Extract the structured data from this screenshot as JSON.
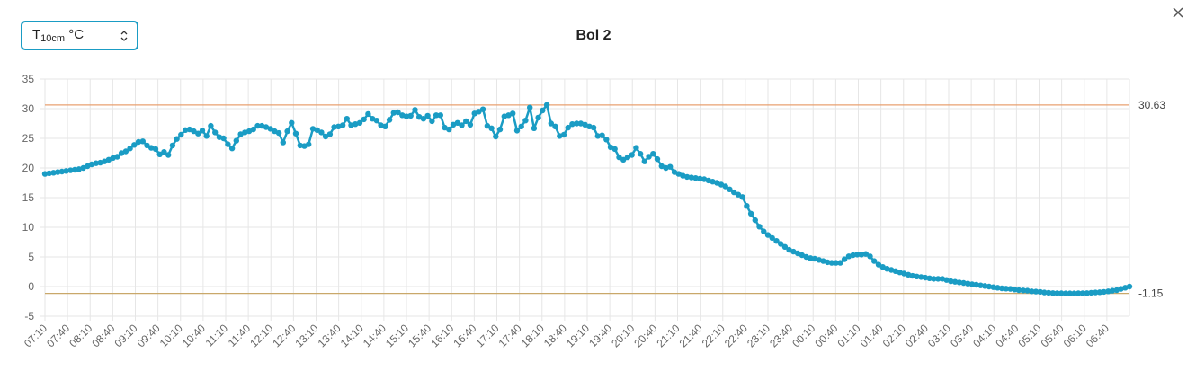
{
  "selector": {
    "label_main": "T",
    "label_sub": "10cm",
    "label_unit": " °C",
    "icon": "chevron-updown-icon"
  },
  "close": {
    "icon": "close-icon"
  },
  "colors": {
    "series": "#1a9cc4",
    "upper_line": "#e8a070",
    "lower_line": "#c9a86a",
    "grid": "#e6e6e6"
  },
  "chart_data": {
    "type": "line",
    "title": "Bol 2",
    "xlabel": "",
    "ylabel": "",
    "ylim": [
      -5,
      35
    ],
    "yticks": [
      "-5",
      "0",
      "5",
      "10",
      "15",
      "20",
      "25",
      "30",
      "35"
    ],
    "grid": true,
    "xticks": [
      "07:10",
      "07:40",
      "08:10",
      "08:40",
      "09:10",
      "09:40",
      "10:10",
      "10:40",
      "11:10",
      "11:40",
      "12:10",
      "12:40",
      "13:10",
      "13:40",
      "14:10",
      "14:40",
      "15:10",
      "15:40",
      "16:10",
      "16:40",
      "17:10",
      "17:40",
      "18:10",
      "18:40",
      "19:10",
      "19:40",
      "20:10",
      "20:40",
      "21:10",
      "21:40",
      "22:10",
      "22:40",
      "23:10",
      "23:40",
      "00:10",
      "00:40",
      "01:10",
      "01:40",
      "02:10",
      "02:40",
      "03:10",
      "03:40",
      "04:10",
      "04:40",
      "05:10",
      "05:40",
      "06:10",
      "06:40"
    ],
    "reference_lines": [
      {
        "value": 30.63,
        "label": "30.63"
      },
      {
        "value": -1.15,
        "label": "-1.15"
      }
    ],
    "series": [
      {
        "interval_minutes": 5,
        "values": [
          19.0,
          19.1,
          19.2,
          19.3,
          19.4,
          19.5,
          19.6,
          19.7,
          19.8,
          20.0,
          20.3,
          20.6,
          20.8,
          20.9,
          21.1,
          21.4,
          21.7,
          21.9,
          22.5,
          22.8,
          23.3,
          23.9,
          24.4,
          24.5,
          23.8,
          23.4,
          23.2,
          22.3,
          22.7,
          22.2,
          23.8,
          24.9,
          25.6,
          26.4,
          26.5,
          26.2,
          25.8,
          26.3,
          25.4,
          27.1,
          26.0,
          25.2,
          25.0,
          24.0,
          23.3,
          24.6,
          25.7,
          26.0,
          26.2,
          26.5,
          27.1,
          27.1,
          26.9,
          26.6,
          26.2,
          25.9,
          24.3,
          26.2,
          27.6,
          25.8,
          23.8,
          23.7,
          24.0,
          26.6,
          26.4,
          26.0,
          25.3,
          25.7,
          26.9,
          27.0,
          27.2,
          28.3,
          27.2,
          27.4,
          27.6,
          28.2,
          29.1,
          28.3,
          28.0,
          27.2,
          27.0,
          28.1,
          29.3,
          29.4,
          28.9,
          28.7,
          28.8,
          29.8,
          28.6,
          28.3,
          28.8,
          27.9,
          28.9,
          28.9,
          26.8,
          26.5,
          27.3,
          27.6,
          27.2,
          27.9,
          27.3,
          29.2,
          29.5,
          29.9,
          27.1,
          26.7,
          25.3,
          26.5,
          28.7,
          28.9,
          29.2,
          26.3,
          27.0,
          28.0,
          30.2,
          26.7,
          28.5,
          29.7,
          30.63,
          27.5,
          27.0,
          25.4,
          25.6,
          26.8,
          27.4,
          27.5,
          27.5,
          27.3,
          27.0,
          26.8,
          25.4,
          25.5,
          24.8,
          23.5,
          23.2,
          21.8,
          21.4,
          21.8,
          22.2,
          23.4,
          22.4,
          21.1,
          21.9,
          22.4,
          21.5,
          20.3,
          20.0,
          20.2,
          19.3,
          19.0,
          18.7,
          18.5,
          18.4,
          18.3,
          18.2,
          18.1,
          17.9,
          17.7,
          17.5,
          17.2,
          16.9,
          16.4,
          15.9,
          15.5,
          15.1,
          13.6,
          12.3,
          11.2,
          10.1,
          9.3,
          8.7,
          8.2,
          7.7,
          7.2,
          6.7,
          6.2,
          5.9,
          5.6,
          5.3,
          5.0,
          4.8,
          4.7,
          4.5,
          4.3,
          4.1,
          4.0,
          4.0,
          4.0,
          4.6,
          5.1,
          5.3,
          5.4,
          5.4,
          5.5,
          5.1,
          4.3,
          3.7,
          3.3,
          3.0,
          2.8,
          2.6,
          2.4,
          2.2,
          2.0,
          1.8,
          1.7,
          1.6,
          1.5,
          1.4,
          1.3,
          1.3,
          1.3,
          1.1,
          0.9,
          0.8,
          0.7,
          0.6,
          0.5,
          0.4,
          0.3,
          0.2,
          0.1,
          0.0,
          -0.1,
          -0.2,
          -0.3,
          -0.35,
          -0.4,
          -0.5,
          -0.6,
          -0.65,
          -0.7,
          -0.8,
          -0.85,
          -0.9,
          -1.0,
          -1.05,
          -1.1,
          -1.12,
          -1.14,
          -1.15,
          -1.15,
          -1.15,
          -1.14,
          -1.12,
          -1.1,
          -1.05,
          -1.0,
          -0.95,
          -0.9,
          -0.8,
          -0.7,
          -0.6,
          -0.4,
          -0.2,
          0.0
        ]
      }
    ]
  }
}
